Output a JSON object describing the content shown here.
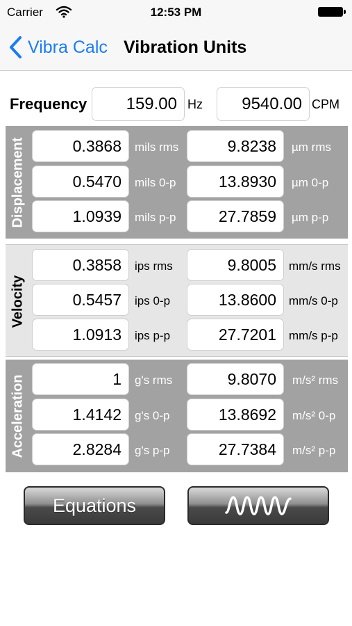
{
  "status_bar": {
    "carrier": "Carrier",
    "time": "12:53 PM"
  },
  "nav": {
    "back_label": "Vibra Calc",
    "title": "Vibration Units"
  },
  "frequency": {
    "label": "Frequency",
    "hz_value": "159.00",
    "hz_unit": "Hz",
    "cpm_value": "9540.00",
    "cpm_unit": "CPM"
  },
  "displacement": {
    "label": "Displacement",
    "rows": [
      {
        "left_value": "0.3868",
        "left_unit": "mils rms",
        "right_value": "9.8238",
        "right_unit": "µm rms"
      },
      {
        "left_value": "0.5470",
        "left_unit": "mils 0-p",
        "right_value": "13.8930",
        "right_unit": "µm 0-p"
      },
      {
        "left_value": "1.0939",
        "left_unit": "mils p-p",
        "right_value": "27.7859",
        "right_unit": "µm p-p"
      }
    ]
  },
  "velocity": {
    "label": "Velocity",
    "rows": [
      {
        "left_value": "0.3858",
        "left_unit": "ips rms",
        "right_value": "9.8005",
        "right_unit": "mm/s rms"
      },
      {
        "left_value": "0.5457",
        "left_unit": "ips 0-p",
        "right_value": "13.8600",
        "right_unit": "mm/s 0-p"
      },
      {
        "left_value": "1.0913",
        "left_unit": "ips p-p",
        "right_value": "27.7201",
        "right_unit": "mm/s p-p"
      }
    ]
  },
  "acceleration": {
    "label": "Acceleration",
    "rows": [
      {
        "left_value": "1",
        "left_unit": "g's rms",
        "right_value": "9.8070",
        "right_unit": "m/s² rms"
      },
      {
        "left_value": "1.4142",
        "left_unit": "g's 0-p",
        "right_value": "13.8692",
        "right_unit": "m/s² 0-p"
      },
      {
        "left_value": "2.8284",
        "left_unit": "g's p-p",
        "right_value": "27.7384",
        "right_unit": "m/s² p-p"
      }
    ]
  },
  "buttons": {
    "equations_label": "Equations",
    "waveform_icon": "sine-wave-icon"
  },
  "colors": {
    "accent": "#1a7cf5",
    "section_dark": "#a2a2a2",
    "section_light": "#e6e6e6"
  }
}
